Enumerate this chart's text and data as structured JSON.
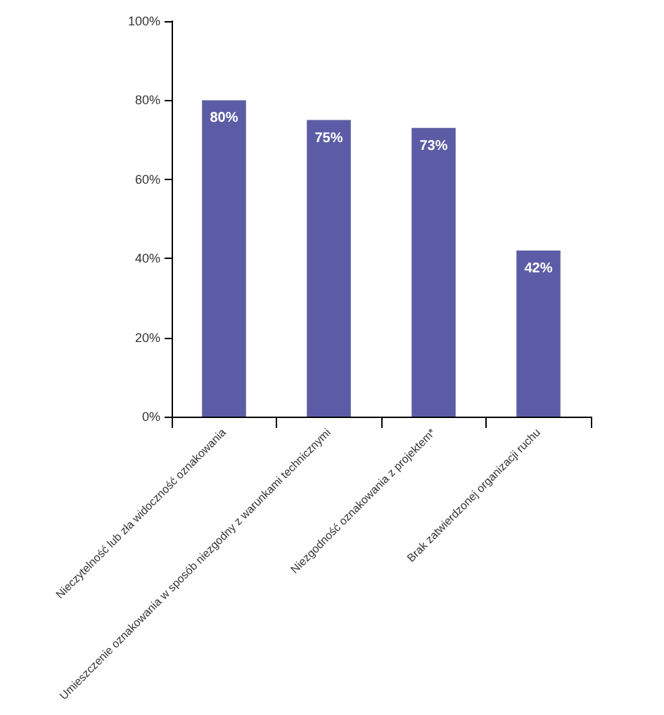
{
  "chart_data": {
    "type": "bar",
    "categories": [
      "Nieczytelność lub zła widoczność oznakowania",
      "Umieszczenie oznakowania w sposób niezgodny z warunkami technicznymi",
      "Niezgodność oznakowania z projektem*",
      "Brak zatwierdzonej organizacji ruchu"
    ],
    "values": [
      80,
      75,
      73,
      42
    ],
    "value_labels": [
      "80%",
      "75%",
      "73%",
      "42%"
    ],
    "color": "#5c5ca6",
    "ylim": [
      0,
      100
    ],
    "yticks": [
      {
        "value": 0,
        "label": "0%"
      },
      {
        "value": 20,
        "label": "20%"
      },
      {
        "value": 40,
        "label": "40%"
      },
      {
        "value": 60,
        "label": "60%"
      },
      {
        "value": 80,
        "label": "80%"
      },
      {
        "value": 100,
        "label": "100%"
      }
    ],
    "grid": false
  }
}
